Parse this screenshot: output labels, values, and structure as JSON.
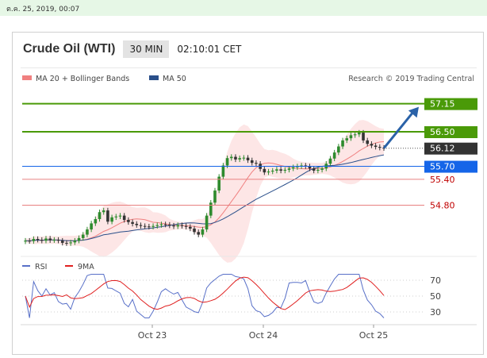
{
  "top_bar": {
    "datetime": "ต.ค. 25, 2019, 00:07"
  },
  "header": {
    "title": "Crude Oil (WTI)",
    "timeframe": "30 MIN",
    "time": "02:10:01 CET"
  },
  "legend": {
    "bb_label": "MA 20 + Bollinger Bands",
    "ma50_label": "MA 50",
    "credit": "Research © 2019 Trading Central"
  },
  "colors": {
    "up": "#2e8b2e",
    "down": "#333333",
    "ma20": "#f08080",
    "band_fill": "#fde3e3",
    "ma50": "#2a4f8a",
    "resistance": "#4a9a08",
    "support": "#1565e8",
    "pivot_line": "#e88080",
    "arrow": "#2a62a8",
    "rsi": "#5870c8",
    "rsi_ma": "#e02020"
  },
  "chart_data": [
    {
      "type": "candlestick",
      "x_labels": [
        "Oct 23",
        "Oct 24",
        "Oct 25"
      ],
      "ylim": [
        53.8,
        57.4
      ],
      "levels": [
        {
          "value": 57.15,
          "label": "57.15",
          "kind": "resistance"
        },
        {
          "value": 56.5,
          "label": "56.50",
          "kind": "resistance"
        },
        {
          "value": 56.12,
          "label": "56.12",
          "kind": "last"
        },
        {
          "value": 55.7,
          "label": "55.70",
          "kind": "support"
        },
        {
          "value": 55.4,
          "label": "55.40",
          "kind": "pivot"
        },
        {
          "value": 54.8,
          "label": "54.80",
          "kind": "pivot"
        }
      ],
      "close": [
        53.98,
        53.97,
        54.02,
        54.0,
        53.98,
        54.03,
        53.99,
        54.0,
        53.98,
        53.93,
        53.92,
        53.94,
        53.98,
        54.04,
        54.12,
        54.24,
        54.38,
        54.48,
        54.64,
        54.68,
        54.42,
        54.52,
        54.54,
        54.56,
        54.46,
        54.41,
        54.37,
        54.34,
        54.32,
        54.31,
        54.3,
        54.32,
        54.34,
        54.36,
        54.35,
        54.33,
        54.31,
        54.34,
        54.32,
        54.3,
        54.26,
        54.18,
        54.12,
        54.24,
        54.56,
        54.86,
        55.14,
        55.46,
        55.72,
        55.89,
        55.92,
        55.86,
        55.89,
        55.9,
        55.84,
        55.78,
        55.76,
        55.64,
        55.56,
        55.58,
        55.6,
        55.63,
        55.6,
        55.62,
        55.65,
        55.68,
        55.7,
        55.72,
        55.7,
        55.65,
        55.6,
        55.62,
        55.65,
        55.76,
        55.88,
        56.02,
        56.16,
        56.3,
        56.35,
        56.42,
        56.44,
        56.48,
        56.3,
        56.22,
        56.18,
        56.15,
        56.13,
        56.12
      ]
    },
    {
      "type": "line",
      "title": "RSI",
      "series": [
        {
          "name": "RSI"
        },
        {
          "name": "9MA"
        }
      ],
      "y_ticks": [
        70,
        50,
        30
      ],
      "ylim": [
        20,
        80
      ]
    }
  ]
}
